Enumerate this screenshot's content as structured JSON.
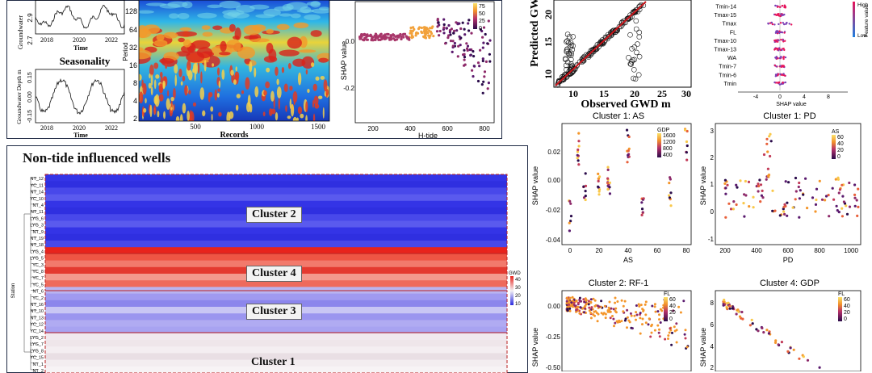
{
  "top_left": {
    "groundwater_axis_top": "Groundwater",
    "tick_29": "2.9",
    "tick_27": "2.7",
    "years": [
      "2018",
      "2020",
      "2022"
    ],
    "time_label": "Time",
    "seasonality_title": "Seasonality",
    "seasonality_ylabel": "Groundwater Depth m",
    "season_ticks": [
      "0.15",
      "0.00",
      "-0.15"
    ]
  },
  "wavelet": {
    "yticks": [
      "128",
      "64",
      "32",
      "16",
      "8",
      "4",
      "2"
    ],
    "xticks": [
      "500",
      "1000",
      "1500"
    ],
    "xlabel": "Records",
    "ylabel": "Period"
  },
  "htide": {
    "ylabel": "SHAP value",
    "xlabel": "H-tide",
    "yticks": [
      "0.0",
      "-0.2"
    ],
    "xticks": [
      "200",
      "400",
      "600",
      "800"
    ],
    "colorbar_ticks": [
      "75",
      "50",
      "25",
      "0"
    ]
  },
  "pred_obs": {
    "ylabel": "Predicted GW",
    "xlabel": "Observed GWD m",
    "yticks": [
      "20",
      "15",
      "10"
    ],
    "xticks": [
      "10",
      "15",
      "20",
      "25",
      "30"
    ]
  },
  "importance": {
    "features": [
      "Tmin-14",
      "Tmax-15",
      "Tmax",
      "FL",
      "Tmax-10",
      "Tmax-13",
      "WA",
      "Tmin-7",
      "Tmin-6",
      "Tmin"
    ],
    "xlabel": "SHAP value",
    "xticks": [
      "-4",
      "0",
      "4",
      "8"
    ],
    "colorbar_label": "Feature value",
    "high": "High",
    "low": "Low"
  },
  "heatmap": {
    "title": "Non-tide influenced wells",
    "station_label": "Station",
    "stations": [
      "NT_12",
      "YC_11",
      "NT_14",
      "YC_10",
      "NT_4",
      "NT_11",
      "LYG_6",
      "LYG_3",
      "NT_9",
      "NT_19",
      "NT_18",
      "LYG_4",
      "LYG_5",
      "YC_3",
      "YC_8",
      "YC_7",
      "YC_5",
      "NT_6",
      "YC_2",
      "NT_16",
      "NT_10",
      "NT_13",
      "YC_12",
      "YC_14",
      "LYG_2",
      "LYG_7",
      "LYG_8",
      "YC_15",
      "NT_1",
      "NT_2"
    ],
    "clusters": [
      "Cluster 2",
      "Cluster 4",
      "Cluster 3",
      "Cluster 1"
    ],
    "colorbar_title": "GWD",
    "colorbar_ticks": [
      "40",
      "30",
      "20",
      "10"
    ],
    "colors": {
      "high": "#e8231c",
      "mid": "#f4f1f4",
      "low": "#2a2ae0"
    }
  },
  "scatter_as": {
    "title": "Cluster 1: AS",
    "xlabel": "AS",
    "ylabel": "SHAP value",
    "yticks": [
      "0.02",
      "0.00",
      "-0.02",
      "-0.04"
    ],
    "xticks": [
      "0",
      "20",
      "40",
      "60",
      "80"
    ],
    "legend_title": "GDP",
    "legend_ticks": [
      "1600",
      "1200",
      "800",
      "400"
    ]
  },
  "scatter_pd": {
    "title": "Cluster 1: PD",
    "xlabel": "PD",
    "ylabel": "SHAP value",
    "yticks": [
      "3",
      "2",
      "1",
      "0",
      "-1"
    ],
    "xticks": [
      "200",
      "400",
      "600",
      "800",
      "1000"
    ],
    "legend_title": "AS",
    "legend_ticks": [
      "60",
      "40",
      "20",
      "0"
    ]
  },
  "scatter_rf": {
    "title": "Cluster 2: RF-1",
    "ylabel": "SHAP value",
    "yticks": [
      "0.00",
      "-0.25",
      "-0.50"
    ],
    "legend_title": "FL",
    "legend_ticks": [
      "60",
      "40",
      "20",
      "0"
    ]
  },
  "scatter_gdp": {
    "title": "Cluster 4: GDP",
    "ylabel": "SHAP value",
    "yticks": [
      "8",
      "6",
      "4",
      "2"
    ],
    "legend_title": "FL",
    "legend_ticks": [
      "60",
      "40",
      "20",
      "0"
    ]
  }
}
